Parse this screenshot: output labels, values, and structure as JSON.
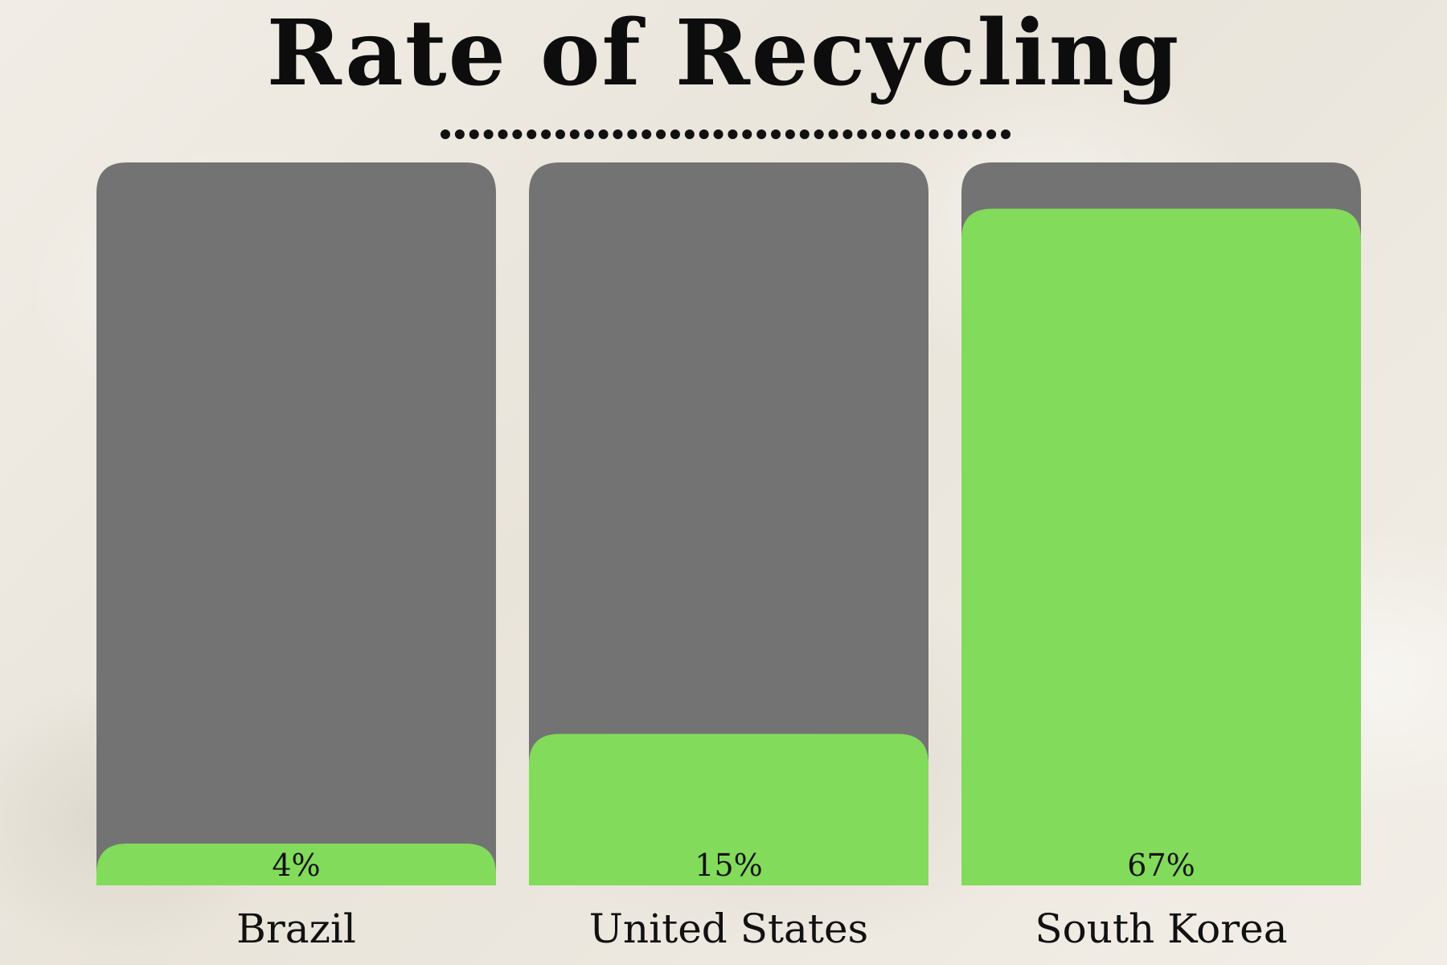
{
  "colors": {
    "background": "#efebe3",
    "track": "#737373",
    "fill": "#82db5a",
    "text": "#111111"
  },
  "chart_data": {
    "type": "bar",
    "title": "Rate of Recycling",
    "categories": [
      "Brazil",
      "United States",
      "South Korea"
    ],
    "values": [
      4,
      15,
      67
    ],
    "value_labels": [
      "4%",
      "15%",
      "67%"
    ],
    "unit": "%",
    "grid": false,
    "legend": "none"
  }
}
